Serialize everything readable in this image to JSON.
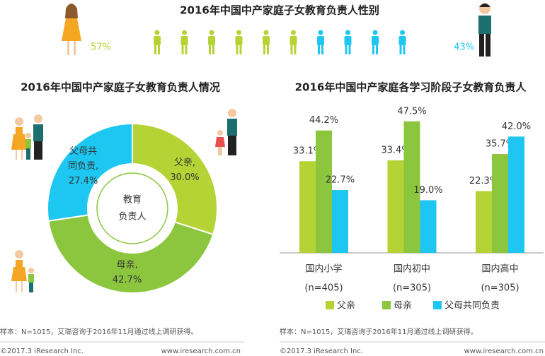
{
  "chart_data": [
    {
      "type": "pictogram",
      "title": "2016年中国中产家庭子女教育负责人性别",
      "values": [
        57,
        43
      ],
      "value_labels": [
        "57%",
        "43%"
      ],
      "colors": [
        "#b5d334",
        "#1ec7f1"
      ]
    },
    {
      "type": "donut",
      "title": "2016年中国中产家庭子女教育负责人情况",
      "labels": [
        [
          "父亲,"
        ],
        [
          "母亲,"
        ],
        [
          "父母共",
          "同负责,"
        ]
      ],
      "values": [
        30.0,
        42.7,
        27.4
      ],
      "value_labels": [
        "30.0%",
        "42.7%",
        "27.4%"
      ],
      "colors": [
        "#b5d334",
        "#8cc63f",
        "#1ec7f1"
      ],
      "center_label": [
        "教育",
        "负责人"
      ]
    },
    {
      "type": "bar",
      "title": "2016年中国中产家庭各学习阶段子女教育负责人",
      "categories": [
        "国内小学",
        "国内初中",
        "国内高中"
      ],
      "category_notes": [
        "(n=405)",
        "(n=305)",
        "(n=305)"
      ],
      "series": [
        {
          "name": "父亲",
          "color": "#b5d334",
          "values": [
            33.1,
            33.4,
            22.3
          ],
          "value_labels": [
            "33.1%",
            "33.4%",
            "22.3%"
          ]
        },
        {
          "name": "母亲",
          "color": "#8cc63f",
          "values": [
            44.2,
            47.5,
            35.7
          ],
          "value_labels": [
            "44.2%",
            "47.5%",
            "35.7%"
          ]
        },
        {
          "name": "父母共同负责",
          "color": "#1ec7f1",
          "values": [
            22.7,
            19.0,
            42.0
          ],
          "value_labels": [
            "22.7%",
            "19.0%",
            "42.0%"
          ]
        }
      ],
      "ylim": [
        0,
        50
      ]
    }
  ],
  "footers": [
    {
      "source": "样本：N=1015，艾瑞咨询于2016年11月通过线上调研获得。",
      "copyright": "©2017.3  iResearch Inc.",
      "url": "www.iresearch.com.cn"
    },
    {
      "source": "样本：N=1015，艾瑞咨询于2016年11月通过线上调研获得。",
      "copyright": "©2017.3  iResearch Inc.",
      "url": "www.iresearch.com.cn"
    }
  ]
}
